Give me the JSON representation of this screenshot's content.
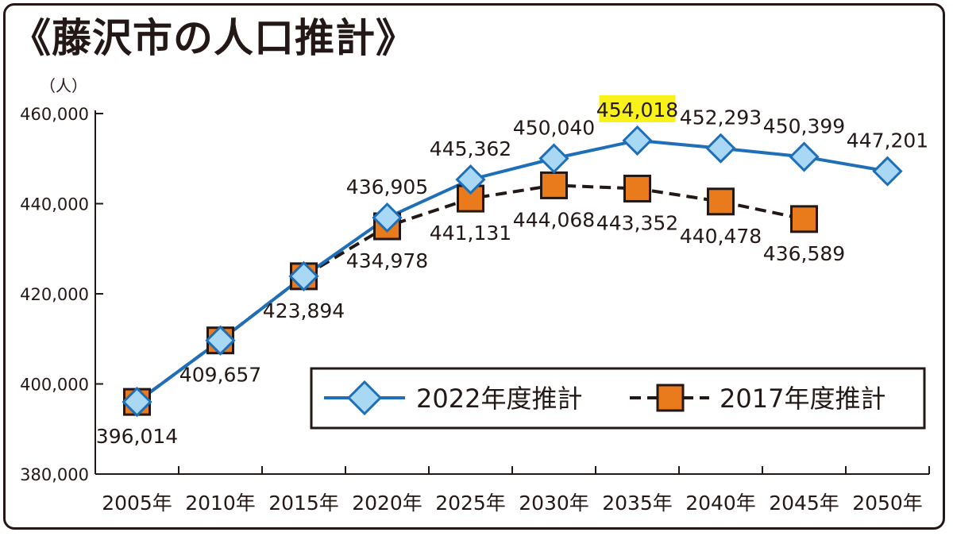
{
  "title": "《藤沢市の人口推計》",
  "chart_data": {
    "type": "line",
    "title": "藤沢市の人口推計",
    "ylabel": "（人）",
    "xlabel": "",
    "ylim": [
      380000,
      460000
    ],
    "yticks": [
      380000,
      400000,
      420000,
      440000,
      460000
    ],
    "ytick_labels": [
      "380,000",
      "400,000",
      "420,000",
      "440,000",
      "460,000"
    ],
    "categories": [
      "2005年",
      "2010年",
      "2015年",
      "2020年",
      "2025年",
      "2030年",
      "2035年",
      "2040年",
      "2045年",
      "2050年"
    ],
    "grid": false,
    "legend_position": "bottom-right",
    "series": [
      {
        "name": "2022年度推計",
        "line_style": "solid",
        "line_color": "#1f6fb8",
        "marker": "diamond",
        "marker_color": "#a9d8f4",
        "values": [
          396014,
          409657,
          423894,
          436905,
          445362,
          450040,
          454018,
          452293,
          450399,
          447201
        ],
        "labels": [
          "396,014",
          "409,657",
          "423,894",
          "436,905",
          "445,362",
          "450,040",
          "454,018",
          "452,293",
          "450,399",
          "447,201"
        ],
        "highlight_index": 6,
        "highlight_color": "#f9f21a"
      },
      {
        "name": "2017年度推計",
        "line_style": "dashed",
        "line_color": "#231815",
        "marker": "square",
        "marker_color": "#e97b1c",
        "values": [
          396014,
          409657,
          423894,
          434978,
          441131,
          444068,
          443352,
          440478,
          436589,
          null
        ],
        "labels": [
          "",
          "",
          "",
          "434,978",
          "441,131",
          "444,068",
          "443,352",
          "440,478",
          "436,589",
          ""
        ]
      }
    ]
  }
}
